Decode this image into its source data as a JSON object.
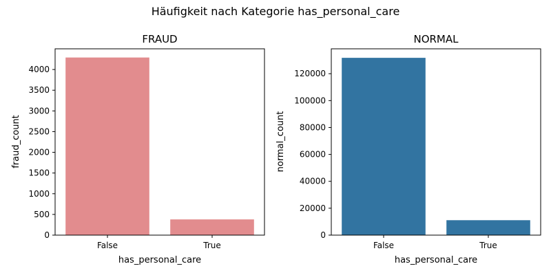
{
  "figure": {
    "suptitle": "Häufigkeit nach Kategorie has_personal_care"
  },
  "chart_data": [
    {
      "type": "bar",
      "title": "FRAUD",
      "xlabel": "has_personal_care",
      "ylabel": "fraud_count",
      "categories": [
        "False",
        "True"
      ],
      "values": [
        4290,
        380
      ],
      "ylim": [
        0,
        4500
      ],
      "yticks": [
        0,
        500,
        1000,
        1500,
        2000,
        2500,
        3000,
        3500,
        4000
      ],
      "color": "#e28c8e",
      "grid": false
    },
    {
      "type": "bar",
      "title": "NORMAL",
      "xlabel": "has_personal_care",
      "ylabel": "normal_count",
      "categories": [
        "False",
        "True"
      ],
      "values": [
        131800,
        11100
      ],
      "ylim": [
        0,
        138500
      ],
      "yticks": [
        0,
        20000,
        40000,
        60000,
        80000,
        100000,
        120000
      ],
      "color": "#3274a1",
      "grid": false
    }
  ]
}
